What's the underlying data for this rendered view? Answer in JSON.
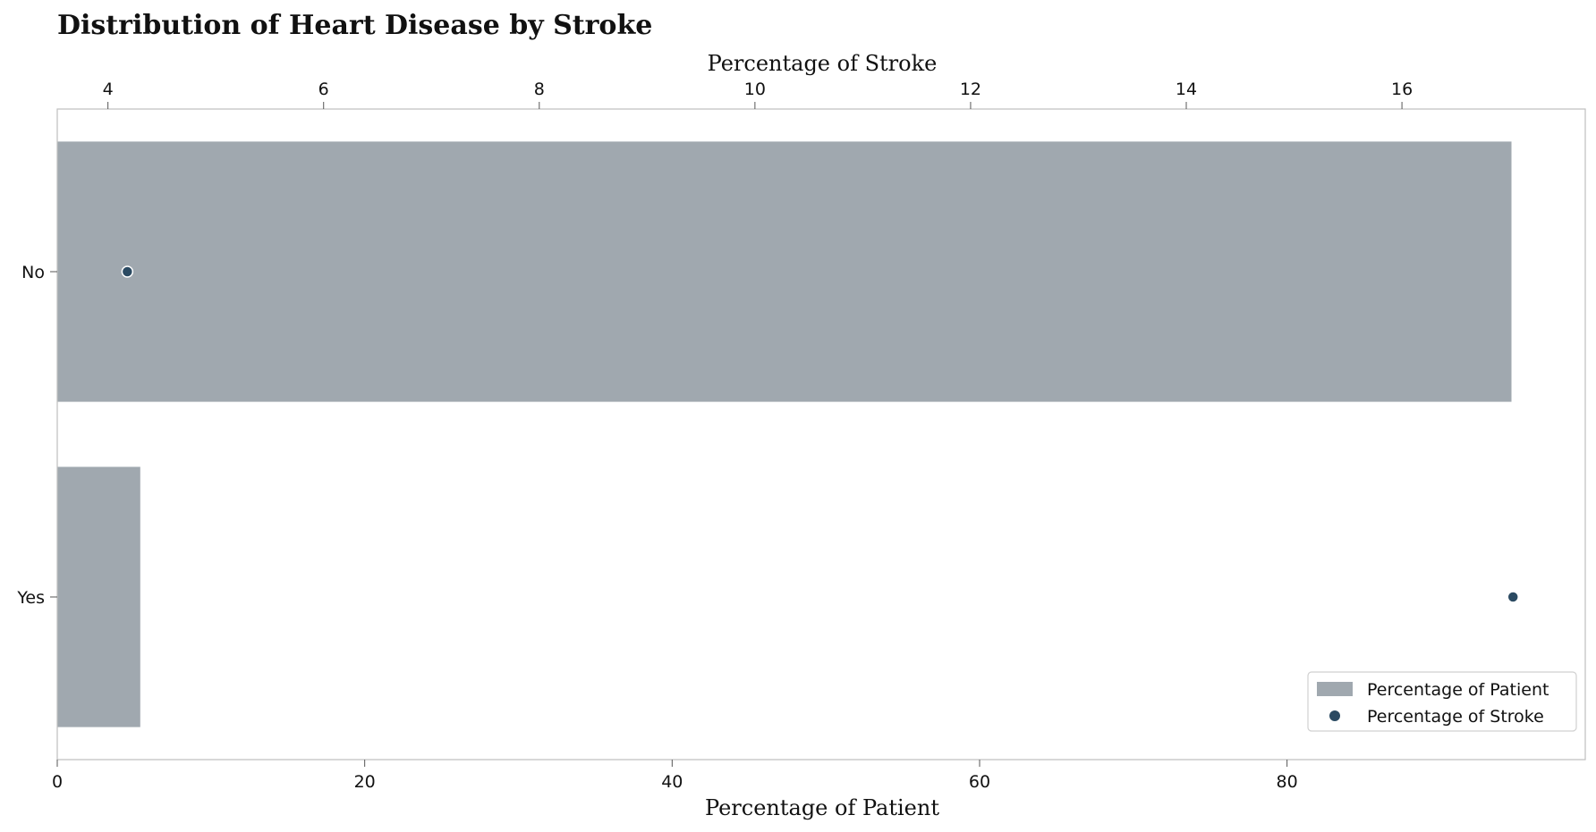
{
  "chart_data": {
    "type": "bar",
    "orientation": "horizontal",
    "title": "Distribution of Heart Disease by Stroke",
    "xlabel": "Percentage of Patient",
    "x2label": "Percentage of Stroke",
    "categories": [
      "No",
      "Yes"
    ],
    "series": [
      {
        "name": "Percentage of Patient",
        "kind": "bar",
        "axis": "bottom",
        "values": [
          94.6,
          5.4
        ],
        "color": "#a0a8af"
      },
      {
        "name": "Percentage of Stroke",
        "kind": "scatter",
        "axis": "top",
        "values": [
          4.18,
          17.03
        ],
        "color": "#2b4a62"
      }
    ],
    "xlim": [
      0,
      99.4
    ],
    "x2lim": [
      3.53,
      17.7
    ],
    "xticks": [
      0,
      20,
      40,
      60,
      80
    ],
    "x2ticks": [
      4,
      6,
      8,
      10,
      12,
      14,
      16
    ],
    "grid": false,
    "legend_position": "bottom-right"
  }
}
